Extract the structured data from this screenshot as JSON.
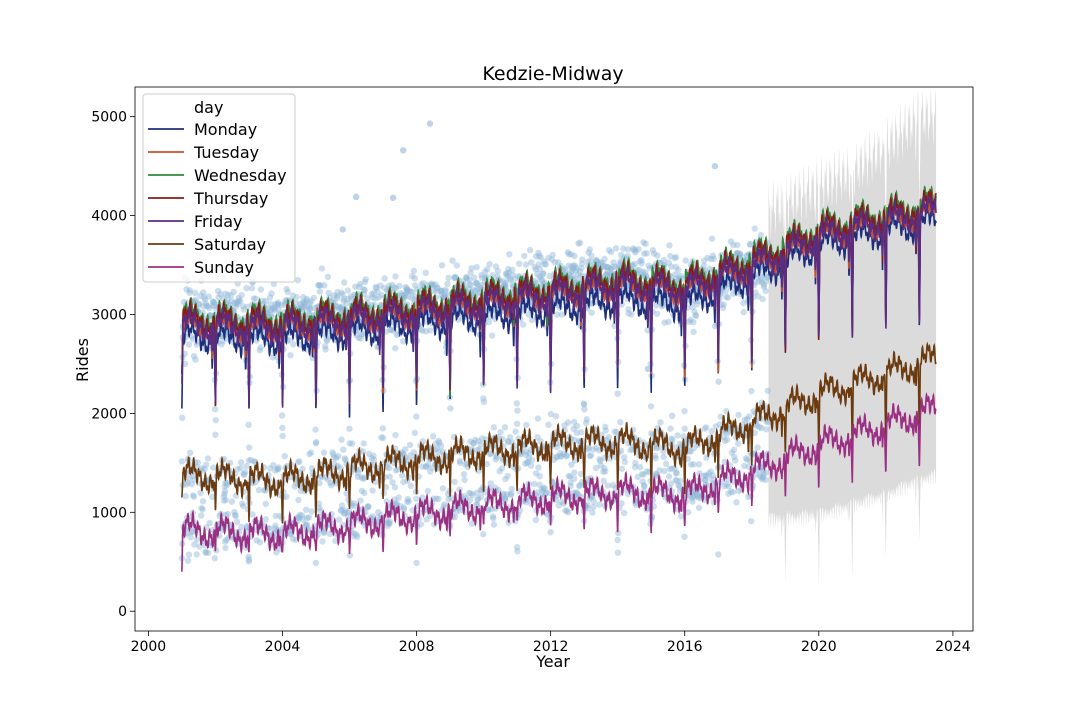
{
  "chart_data": {
    "type": "line",
    "title": "Kedzie-Midway",
    "xlabel": "Year",
    "ylabel": "Rides",
    "xlim": [
      1999.6,
      2024.6
    ],
    "ylim": [
      -200,
      5300
    ],
    "xticks": [
      2000,
      2004,
      2008,
      2012,
      2016,
      2020,
      2024
    ],
    "yticks": [
      0,
      1000,
      2000,
      3000,
      4000,
      5000
    ],
    "grid": false,
    "legend": {
      "title": "day",
      "placement": "top-left",
      "entries": [
        "Monday",
        "Tuesday",
        "Wednesday",
        "Thursday",
        "Friday",
        "Saturday",
        "Sunday"
      ]
    },
    "observed_points": {
      "name": "observed daily rides",
      "color": "#8fb5d8",
      "x_range": [
        2001.0,
        2018.5
      ],
      "weekday_level": {
        "x": [
          2001,
          2004,
          2008,
          2012,
          2014,
          2016,
          2018.5
        ],
        "y": [
          2950,
          2950,
          3100,
          3300,
          3400,
          3250,
          3550
        ]
      },
      "saturday_level": {
        "x": [
          2001,
          2004,
          2008,
          2012,
          2016,
          2018.5
        ],
        "y": [
          1350,
          1350,
          1550,
          1700,
          1650,
          1950
        ]
      },
      "sunday_level": {
        "x": [
          2001,
          2004,
          2008,
          2012,
          2016,
          2018.5
        ],
        "y": [
          800,
          850,
          1050,
          1200,
          1200,
          1450
        ]
      },
      "outliers": [
        [
          2008.4,
          4930
        ],
        [
          2007.6,
          4660
        ],
        [
          2006.2,
          4190
        ],
        [
          2007.3,
          4180
        ],
        [
          2016.9,
          4500
        ],
        [
          2005.8,
          3860
        ],
        [
          2014.9,
          2450
        ]
      ]
    },
    "forecast_band": {
      "color": "#d9d9d9",
      "x_start": 2018.5,
      "x_end": 2023.5,
      "upper": {
        "x": [
          2018.5,
          2020,
          2021,
          2022,
          2023,
          2023.5
        ],
        "y": [
          4050,
          4300,
          4450,
          4700,
          5000,
          5000
        ]
      },
      "lower": {
        "x": [
          2018.5,
          2020,
          2021,
          2022,
          2023,
          2023.5
        ],
        "y": [
          1000,
          1050,
          1150,
          1250,
          1400,
          1450
        ]
      }
    },
    "series": [
      {
        "name": "Monday",
        "color": "#1f2e7a",
        "start": 2050,
        "level": {
          "x": [
            2001,
            2004,
            2008,
            2012,
            2014,
            2016,
            2018.5,
            2020,
            2022,
            2023.5
          ],
          "y": [
            2780,
            2750,
            2900,
            3050,
            3150,
            3100,
            3450,
            3700,
            3850,
            3950
          ]
        }
      },
      {
        "name": "Tuesday",
        "color": "#c8522a",
        "start": 2400,
        "level": {
          "x": [
            2001,
            2004,
            2008,
            2012,
            2014,
            2016,
            2018.5,
            2020,
            2022,
            2023.5
          ],
          "y": [
            2920,
            2900,
            3050,
            3230,
            3330,
            3280,
            3580,
            3820,
            3970,
            4080
          ]
        }
      },
      {
        "name": "Wednesday",
        "color": "#2e8b3a",
        "start": 2400,
        "level": {
          "x": [
            2001,
            2004,
            2008,
            2012,
            2014,
            2016,
            2018.5,
            2020,
            2022,
            2023.5
          ],
          "y": [
            2980,
            2960,
            3110,
            3290,
            3390,
            3340,
            3640,
            3880,
            4030,
            4140
          ]
        }
      },
      {
        "name": "Thursday",
        "color": "#8b1a1a",
        "start": 2400,
        "level": {
          "x": [
            2001,
            2004,
            2008,
            2012,
            2014,
            2016,
            2018.5,
            2020,
            2022,
            2023.5
          ],
          "y": [
            2950,
            2930,
            3080,
            3260,
            3360,
            3310,
            3610,
            3850,
            4000,
            4110
          ]
        }
      },
      {
        "name": "Friday",
        "color": "#5b2c83",
        "start": 2300,
        "level": {
          "x": [
            2001,
            2004,
            2008,
            2012,
            2014,
            2016,
            2018.5,
            2020,
            2022,
            2023.5
          ],
          "y": [
            2890,
            2870,
            3020,
            3200,
            3300,
            3250,
            3550,
            3790,
            3940,
            4050
          ]
        }
      },
      {
        "name": "Saturday",
        "color": "#6b3a0f",
        "start": 1150,
        "level": {
          "x": [
            2001,
            2004,
            2008,
            2012,
            2014,
            2016,
            2018.5,
            2020,
            2022,
            2023.5
          ],
          "y": [
            1380,
            1320,
            1540,
            1690,
            1720,
            1650,
            1980,
            2200,
            2400,
            2560
          ]
        }
      },
      {
        "name": "Sunday",
        "color": "#9b2f83",
        "start": 400,
        "level": {
          "x": [
            2001,
            2004,
            2008,
            2012,
            2014,
            2016,
            2018.5,
            2020,
            2022,
            2023.5
          ],
          "y": [
            820,
            780,
            980,
            1150,
            1210,
            1180,
            1480,
            1680,
            1880,
            2050
          ]
        }
      }
    ]
  }
}
